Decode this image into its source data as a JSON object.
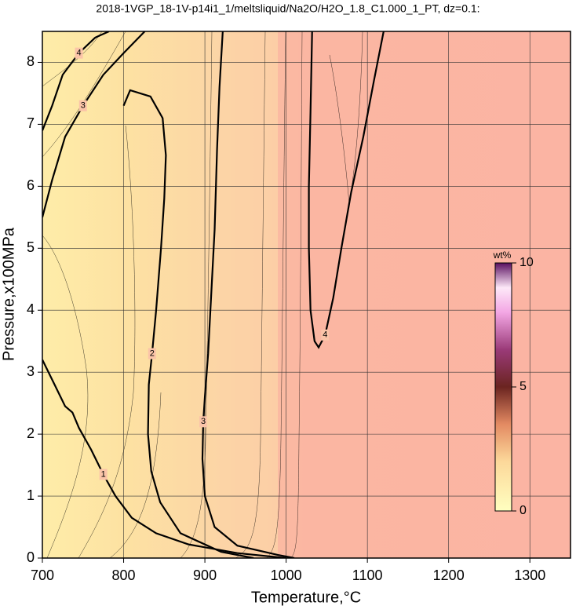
{
  "chart_data": {
    "type": "contour",
    "title": "2018-1VGP_18-1V-p14i1_1/meltsliquid/Na2O/H2O_1.8_C1.000_1_PT, dz=0.1:",
    "x_label": "Temperature,°C",
    "y_label": "Pressure,x100MPa",
    "xlim": [
      700,
      1350
    ],
    "ylim": [
      0,
      8.5
    ],
    "xticks": [
      700,
      800,
      900,
      1000,
      1100,
      1200,
      1300
    ],
    "yticks": [
      0,
      1,
      2,
      3,
      4,
      5,
      6,
      7,
      8
    ],
    "grid": true,
    "colorbar": {
      "label": "wt%",
      "lim": [
        0,
        10
      ],
      "ticks": [
        0,
        5,
        10
      ]
    },
    "contours": [
      {
        "level": 1,
        "x": [
          700,
          715,
          728,
          737,
          745,
          760,
          775,
          790,
          810,
          840,
          880,
          940,
          1000
        ],
        "y": [
          3.2,
          2.8,
          2.45,
          2.35,
          2.1,
          1.75,
          1.35,
          1.0,
          0.65,
          0.4,
          0.22,
          0.08,
          0
        ]
      },
      {
        "level": 2,
        "x": [
          800,
          808,
          833,
          848,
          852,
          850,
          846,
          840,
          835,
          831,
          830,
          834,
          845,
          870,
          920,
          960
        ],
        "y": [
          7.3,
          7.55,
          7.45,
          7.1,
          6.5,
          5.8,
          5.0,
          4.0,
          3.3,
          2.8,
          2.0,
          1.4,
          0.9,
          0.4,
          0.1,
          0
        ]
      },
      {
        "level": 3,
        "x": [
          922,
          918,
          915,
          912,
          908,
          904,
          900,
          898,
          897,
          900,
          912,
          940,
          990,
          1010
        ],
        "y": [
          8.5,
          7.6,
          6.6,
          5.3,
          4.3,
          3.3,
          2.6,
          2.2,
          1.6,
          1.0,
          0.5,
          0.2,
          0.05,
          0
        ]
      },
      {
        "level": 3,
        "x": [
          700,
          712,
          728,
          750,
          775,
          800,
          826
        ],
        "y": [
          5.5,
          6.1,
          6.8,
          7.3,
          7.8,
          8.15,
          8.5
        ]
      },
      {
        "level": 4,
        "x": [
          1032,
          1030,
          1028,
          1028,
          1030,
          1035,
          1040,
          1048,
          1058,
          1068,
          1080,
          1095,
          1108,
          1120
        ],
        "y": [
          8.5,
          7.2,
          6.0,
          5.0,
          4.0,
          3.5,
          3.4,
          3.6,
          4.2,
          5.0,
          5.9,
          6.8,
          7.7,
          8.5
        ]
      },
      {
        "level": 4,
        "x": [
          700,
          712,
          725,
          745,
          765,
          782
        ],
        "y": [
          6.9,
          7.3,
          7.8,
          8.15,
          8.4,
          8.5
        ]
      }
    ]
  }
}
